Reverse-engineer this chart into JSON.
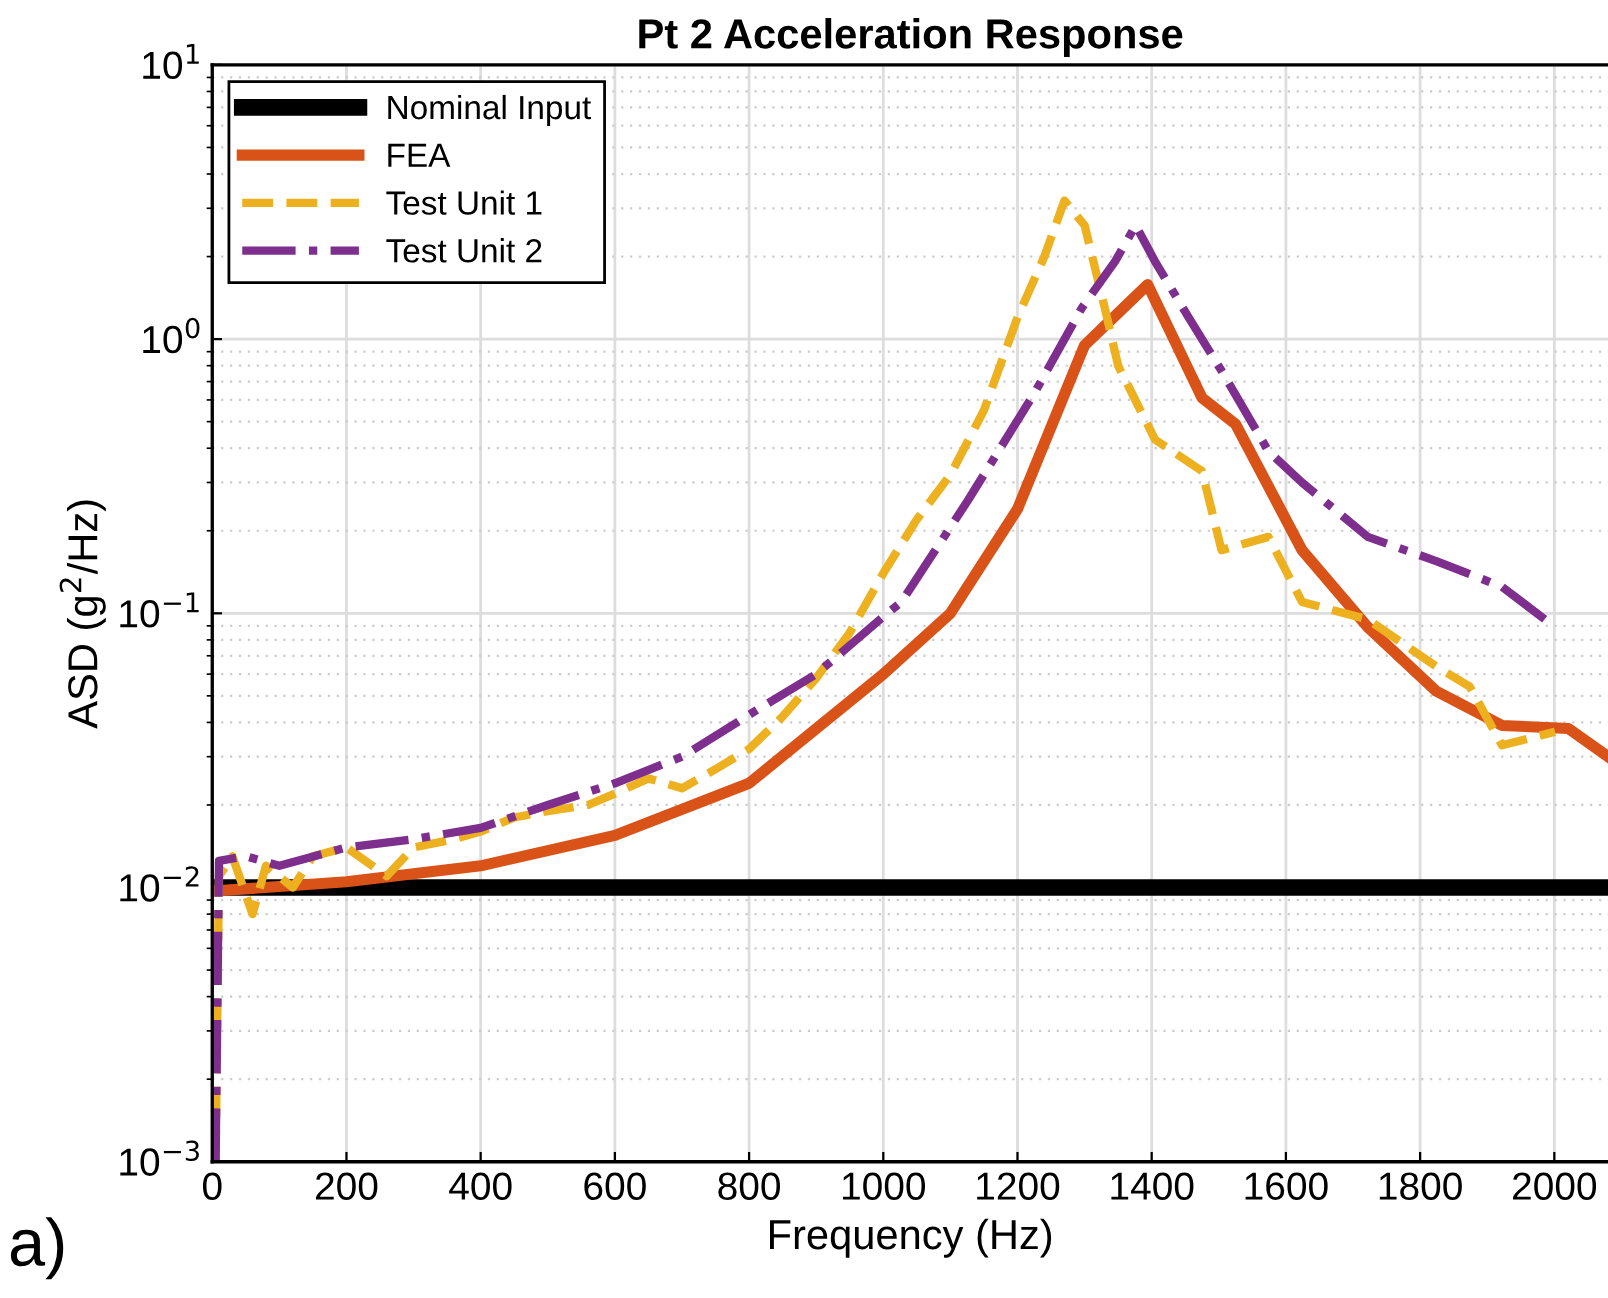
{
  "chart_data": {
    "type": "line",
    "title": "Pt 2 Acceleration Response",
    "xlabel": "Frequency (Hz)",
    "ylabel": "ASD (g$^{2}$/Hz)",
    "log": "y",
    "grid": true,
    "legend": "top left",
    "xlim": [
      0,
      2080
    ],
    "xticks": [
      0,
      200,
      400,
      600,
      800,
      1000,
      1200,
      1400,
      1600,
      1800,
      2000
    ],
    "ylim": [
      0.001,
      10
    ],
    "yticks": [
      {
        "value": 0.001,
        "label": "10$^{−3}$"
      },
      {
        "value": 0.01,
        "label": "10$^{−2}$"
      },
      {
        "value": 0.1,
        "label": "10$^{−1}$"
      },
      {
        "value": 1,
        "label": "10$^{0}$"
      },
      {
        "value": 10,
        "label": "10$^{1}$"
      }
    ],
    "annotations": [
      "a)"
    ],
    "series": [
      {
        "name": "Nominal Input",
        "color": "#000000",
        "line_style": "solid",
        "x": [
          0,
          2080
        ],
        "values": [
          0.01,
          0.01
        ]
      },
      {
        "name": "FEA",
        "color": "#d95319",
        "line_style": "solid",
        "x": [
          0,
          200,
          400,
          600,
          800,
          1000,
          1100,
          1200,
          1300,
          1394,
          1475,
          1525,
          1624,
          1722,
          1824,
          1922,
          2021,
          2080
        ],
        "values": [
          0.0097,
          0.0105,
          0.012,
          0.0155,
          0.024,
          0.06,
          0.1,
          0.24,
          0.95,
          1.58,
          0.61,
          0.49,
          0.17,
          0.089,
          0.052,
          0.039,
          0.038,
          0.03
        ]
      },
      {
        "name": "Test Unit 1",
        "color": "#edb120",
        "line_style": "dashed",
        "x": [
          5,
          10,
          30,
          60,
          80,
          120,
          150,
          200,
          260,
          300,
          360,
          400,
          450,
          500,
          560,
          600,
          650,
          700,
          750,
          800,
          850,
          900,
          950,
          1000,
          1050,
          1100,
          1150,
          1200,
          1240,
          1270,
          1300,
          1330,
          1350,
          1405,
          1475,
          1504,
          1574,
          1624,
          1722,
          1824,
          1874,
          1922,
          2001
        ],
        "values": [
          0.001,
          0.011,
          0.013,
          0.008,
          0.012,
          0.01,
          0.013,
          0.014,
          0.011,
          0.014,
          0.015,
          0.016,
          0.018,
          0.019,
          0.02,
          0.022,
          0.025,
          0.023,
          0.027,
          0.032,
          0.042,
          0.058,
          0.085,
          0.14,
          0.22,
          0.32,
          0.55,
          1.2,
          2.0,
          3.2,
          2.6,
          1.3,
          0.8,
          0.43,
          0.33,
          0.17,
          0.19,
          0.11,
          0.095,
          0.064,
          0.054,
          0.033,
          0.037
        ]
      },
      {
        "name": "Test Unit 2",
        "color": "#7e2f8e",
        "line_style": "dashdot",
        "x": [
          5,
          10,
          50,
          100,
          200,
          300,
          400,
          500,
          600,
          700,
          809,
          900,
          1006,
          1027,
          1127,
          1226,
          1296,
          1346,
          1376,
          1406,
          1455,
          1505,
          1574,
          1624,
          1722,
          1824,
          1922,
          2001
        ],
        "values": [
          0.001,
          0.0125,
          0.013,
          0.012,
          0.014,
          0.015,
          0.0165,
          0.02,
          0.024,
          0.03,
          0.044,
          0.06,
          0.1,
          0.11,
          0.26,
          0.64,
          1.3,
          1.93,
          2.6,
          1.9,
          1.2,
          0.76,
          0.39,
          0.3,
          0.19,
          0.155,
          0.125,
          0.089
        ]
      }
    ]
  }
}
